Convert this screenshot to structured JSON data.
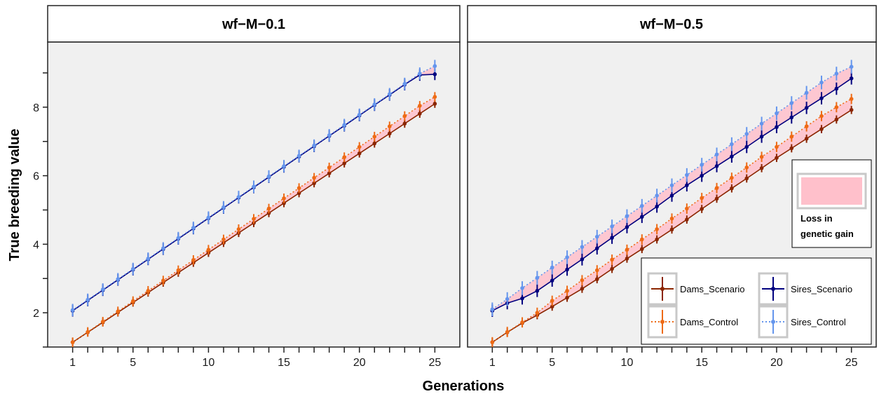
{
  "chart_data": [
    {
      "type": "line",
      "panel_title": "wf−M−0.1",
      "xlabel": "Generations",
      "ylabel": "True breeding value",
      "xlim": [
        1,
        25
      ],
      "ylim": [
        1.0,
        9.9
      ],
      "x_ticks": [
        1,
        5,
        10,
        15,
        20,
        25
      ],
      "y_ticks": [
        2,
        4,
        6,
        8
      ],
      "grid": false,
      "x": [
        1,
        2,
        3,
        4,
        5,
        6,
        7,
        8,
        9,
        10,
        11,
        12,
        13,
        14,
        15,
        16,
        17,
        18,
        19,
        20,
        21,
        22,
        23,
        24,
        25
      ],
      "series": [
        {
          "name": "Dams_Scenario",
          "color": "#8B2500",
          "linestyle": "solid",
          "values": [
            1.14,
            1.43,
            1.72,
            2.01,
            2.3,
            2.59,
            2.88,
            3.17,
            3.46,
            3.75,
            4.04,
            4.33,
            4.62,
            4.91,
            5.2,
            5.49,
            5.78,
            6.07,
            6.36,
            6.65,
            6.94,
            7.23,
            7.52,
            7.81,
            8.1
          ],
          "error": 0.12
        },
        {
          "name": "Dams_Control",
          "color": "#EE6A14",
          "linestyle": "dotted",
          "values": [
            1.14,
            1.44,
            1.74,
            2.04,
            2.34,
            2.64,
            2.94,
            3.24,
            3.54,
            3.84,
            4.14,
            4.44,
            4.74,
            5.04,
            5.34,
            5.64,
            5.94,
            6.24,
            6.54,
            6.84,
            7.14,
            7.44,
            7.74,
            8.04,
            8.3
          ],
          "error": 0.14
        },
        {
          "name": "Sires_Scenario",
          "color": "#00007F",
          "linestyle": "solid",
          "values": [
            2.06,
            2.36,
            2.66,
            2.96,
            3.26,
            3.56,
            3.86,
            4.16,
            4.46,
            4.76,
            5.06,
            5.36,
            5.66,
            5.96,
            6.26,
            6.56,
            6.86,
            7.16,
            7.46,
            7.76,
            8.06,
            8.36,
            8.66,
            8.94,
            8.96
          ],
          "error": 0.17
        },
        {
          "name": "Sires_Control",
          "color": "#6495ED",
          "linestyle": "dotted",
          "values": [
            2.08,
            2.38,
            2.68,
            2.98,
            3.28,
            3.58,
            3.88,
            4.18,
            4.48,
            4.78,
            5.08,
            5.38,
            5.68,
            5.98,
            6.28,
            6.58,
            6.88,
            7.18,
            7.48,
            7.78,
            8.08,
            8.38,
            8.68,
            8.98,
            9.2
          ],
          "error": 0.18
        }
      ]
    },
    {
      "type": "line",
      "panel_title": "wf−M−0.5",
      "xlabel": "Generations",
      "ylabel": "True breeding value",
      "xlim": [
        1,
        25
      ],
      "ylim": [
        1.0,
        9.9
      ],
      "x_ticks": [
        1,
        5,
        10,
        15,
        20,
        25
      ],
      "y_ticks": [
        2,
        4,
        6,
        8
      ],
      "grid": false,
      "x": [
        1,
        2,
        3,
        4,
        5,
        6,
        7,
        8,
        9,
        10,
        11,
        12,
        13,
        14,
        15,
        16,
        17,
        18,
        19,
        20,
        21,
        22,
        23,
        24,
        25
      ],
      "series": [
        {
          "name": "Dams_Scenario",
          "color": "#8B2500",
          "linestyle": "solid",
          "values": [
            1.14,
            1.43,
            1.7,
            1.93,
            2.18,
            2.44,
            2.7,
            2.98,
            3.28,
            3.58,
            3.86,
            4.14,
            4.43,
            4.72,
            5.03,
            5.33,
            5.63,
            5.92,
            6.22,
            6.52,
            6.8,
            7.08,
            7.36,
            7.64,
            7.92
          ],
          "error": 0.12
        },
        {
          "name": "Dams_Control",
          "color": "#EE6A14",
          "linestyle": "dotted",
          "values": [
            1.14,
            1.44,
            1.72,
            2.0,
            2.35,
            2.64,
            2.95,
            3.24,
            3.55,
            3.84,
            4.14,
            4.44,
            4.75,
            5.04,
            5.35,
            5.64,
            5.94,
            6.24,
            6.55,
            6.84,
            7.14,
            7.44,
            7.74,
            8.0,
            8.24
          ],
          "error": 0.15
        },
        {
          "name": "Sires_Scenario",
          "color": "#00007F",
          "linestyle": "solid",
          "values": [
            2.06,
            2.28,
            2.42,
            2.64,
            2.94,
            3.26,
            3.56,
            3.88,
            4.19,
            4.5,
            4.8,
            5.1,
            5.42,
            5.72,
            6.0,
            6.28,
            6.56,
            6.84,
            7.14,
            7.42,
            7.7,
            7.98,
            8.26,
            8.54,
            8.84
          ],
          "error": 0.18
        },
        {
          "name": "Sires_Control",
          "color": "#6495ED",
          "linestyle": "dotted",
          "values": [
            2.1,
            2.4,
            2.72,
            3.02,
            3.32,
            3.62,
            3.92,
            4.22,
            4.52,
            4.82,
            5.12,
            5.42,
            5.72,
            6.02,
            6.32,
            6.62,
            6.92,
            7.22,
            7.52,
            7.82,
            8.12,
            8.42,
            8.72,
            8.98,
            9.18
          ],
          "error": 0.2
        }
      ],
      "legend": {
        "fill_label": "Loss in genetic gain",
        "fill_label_lines": [
          "Loss in",
          "genetic gain"
        ],
        "entries": [
          "Dams_Scenario",
          "Sires_Scenario",
          "Dams_Control",
          "Sires_Control"
        ],
        "placement": "bottom-right"
      }
    }
  ],
  "colors": {
    "panel_bg": "#F0F0F0",
    "fill_loss": "#FFC0CB"
  }
}
